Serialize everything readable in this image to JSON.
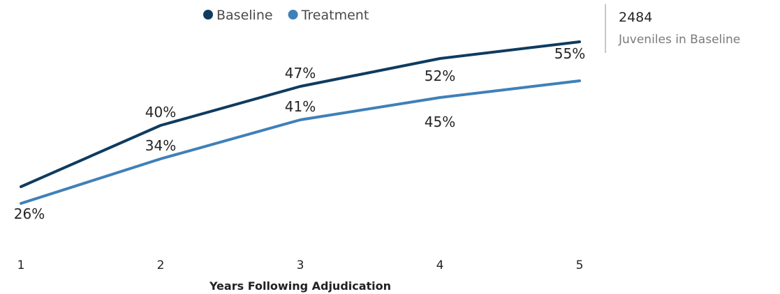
{
  "chart_data": {
    "type": "line",
    "categories": [
      "1",
      "2",
      "3",
      "4",
      "5"
    ],
    "xlabel": "Years Following Adjudication",
    "ylabel": "",
    "ylim": [
      20,
      60
    ],
    "legend_position": "top-center",
    "grid": false,
    "series": [
      {
        "name": "Baseline",
        "color": "#0f3b5f",
        "values": [
          29,
          40,
          47,
          52,
          55
        ],
        "labels": [
          "",
          "40%",
          "47%",
          "52%",
          "55%"
        ]
      },
      {
        "name": "Treatment",
        "color": "#3f80b8",
        "values": [
          26,
          34,
          41,
          45,
          48
        ],
        "labels": [
          "26%",
          "34%",
          "41%",
          "45%",
          ""
        ]
      }
    ]
  },
  "kpi": {
    "value": "2484",
    "label": "Juveniles in Baseline"
  }
}
